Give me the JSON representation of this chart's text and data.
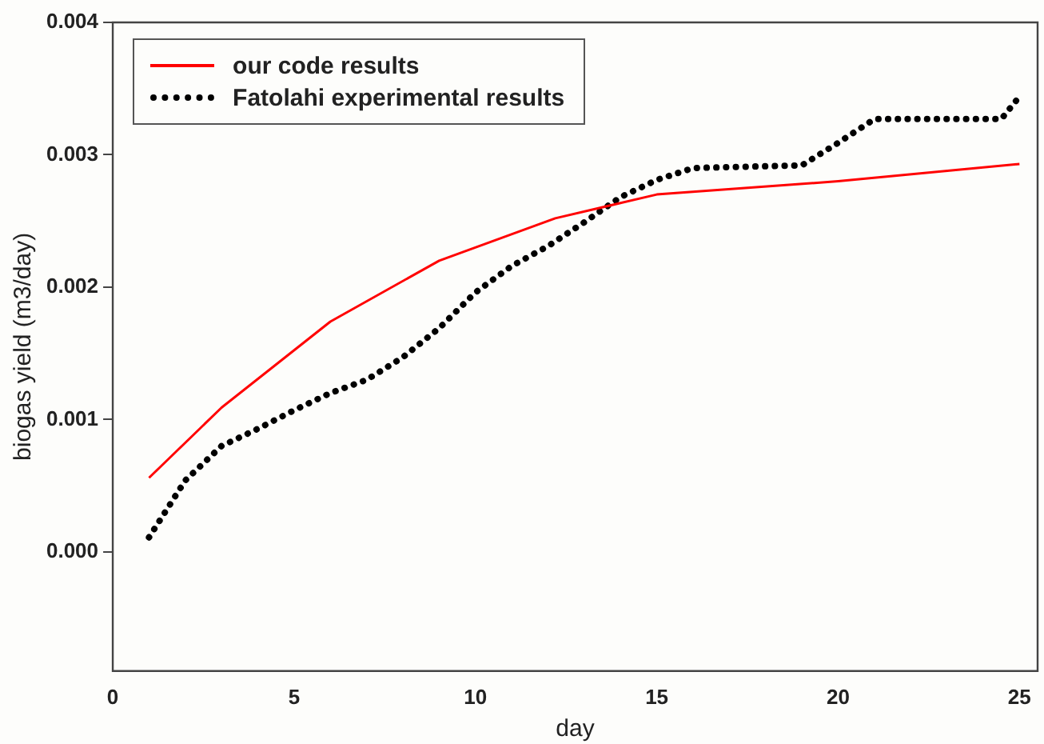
{
  "chart_data": {
    "type": "line",
    "xlabel": "day",
    "ylabel": "biogas yield (m3/day)",
    "xlim": [
      0,
      25.5
    ],
    "xticks": [
      0,
      5,
      10,
      15,
      20,
      25
    ],
    "ylim": [
      -0.0009,
      0.004
    ],
    "yticks": [
      {
        "value": 0,
        "label": "0.000"
      },
      {
        "value": 0.001,
        "label": "0.001"
      },
      {
        "value": 0.002,
        "label": "0.002"
      },
      {
        "value": 0.003,
        "label": "0.003"
      },
      {
        "value": 0.004,
        "label": "0.004"
      }
    ],
    "grid": false,
    "legend": "top left",
    "marker": "none",
    "series": [
      {
        "name": "our code results",
        "color": "#ff0000",
        "line_style": "solid",
        "x": [
          1,
          3,
          6,
          9,
          12.2,
          15,
          20,
          25
        ],
        "values": [
          0.00056,
          0.00109,
          0.00174,
          0.0022,
          0.00252,
          0.0027,
          0.0028,
          0.00293
        ]
      },
      {
        "name": "Fatolahi experimental results",
        "color": "#000000",
        "line_style": "dotted",
        "x": [
          1,
          2,
          3,
          4,
          5,
          6,
          7,
          8,
          9,
          10,
          11,
          12,
          13,
          14,
          15,
          16,
          19,
          20,
          21,
          24.5,
          25
        ],
        "values": [
          0.00011,
          0.00054,
          0.0008,
          0.00093,
          0.00107,
          0.0012,
          0.0013,
          0.00147,
          0.00169,
          0.00196,
          0.00216,
          0.00231,
          0.00249,
          0.00268,
          0.00281,
          0.0029,
          0.00292,
          0.00309,
          0.00327,
          0.00327,
          0.00344
        ]
      }
    ]
  }
}
